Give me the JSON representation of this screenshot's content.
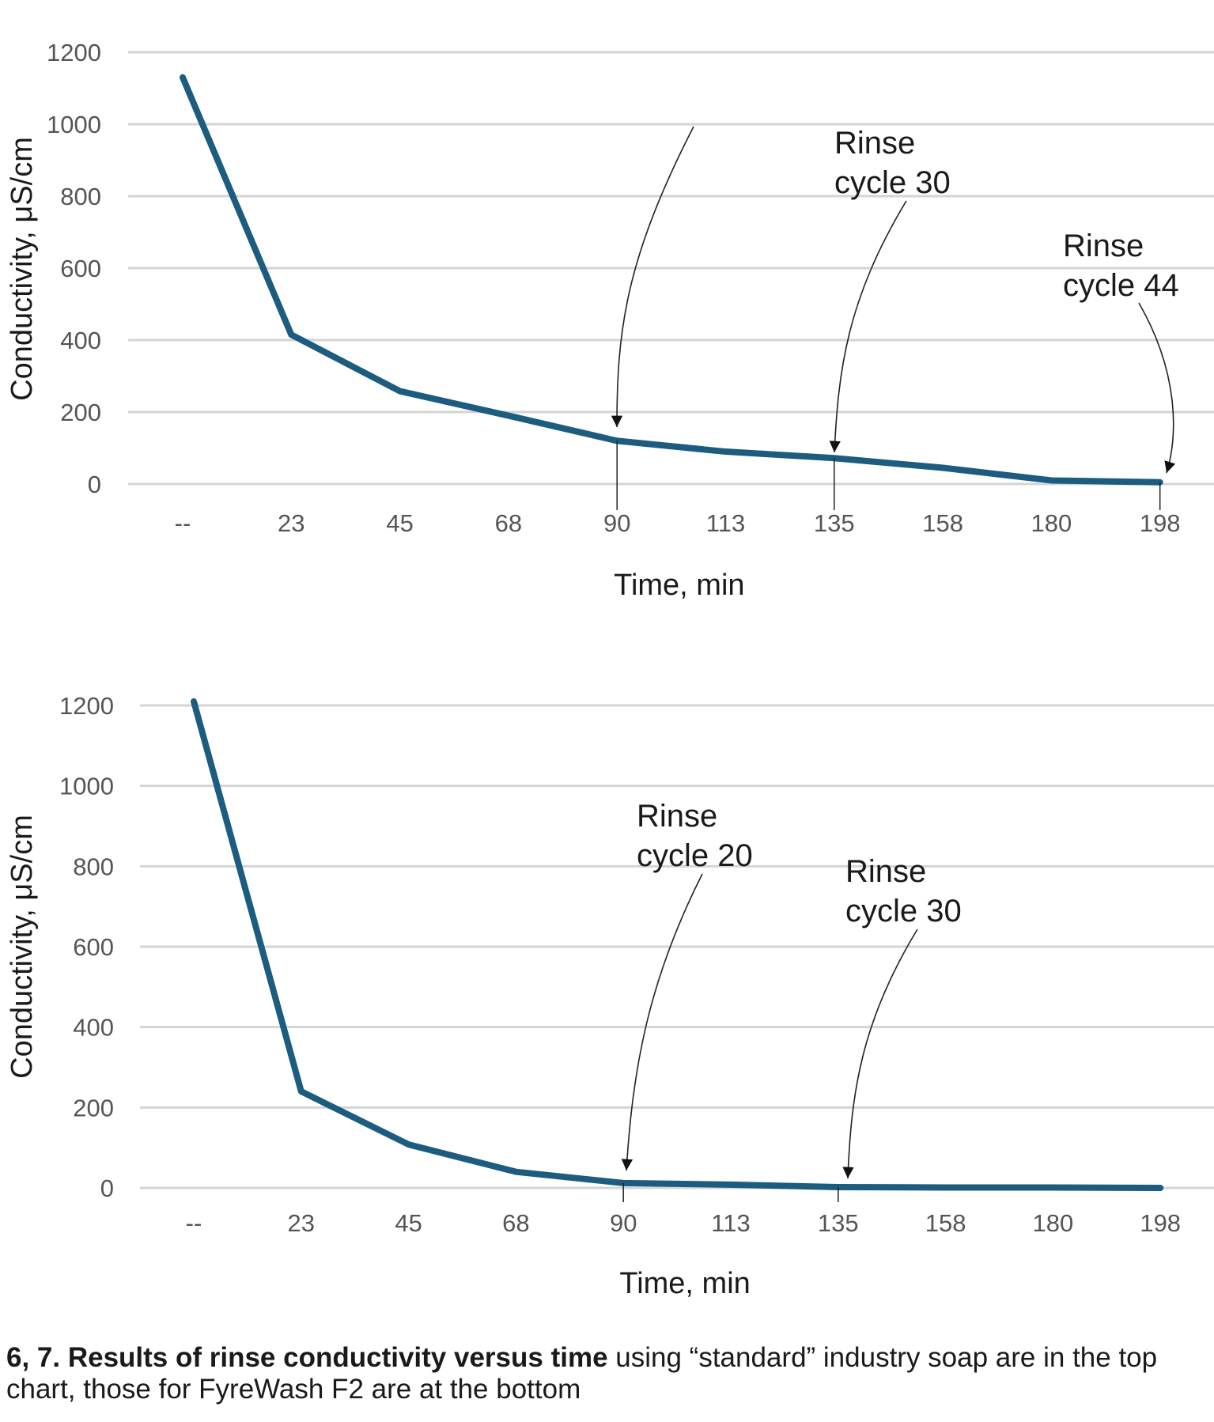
{
  "chart_data": [
    {
      "type": "line",
      "categories": [
        "--",
        "23",
        "45",
        "68",
        "90",
        "113",
        "135",
        "158",
        "180",
        "198"
      ],
      "series": [
        {
          "values": [
            1130,
            415,
            258,
            190,
            120,
            90,
            72,
            45,
            10,
            5
          ]
        }
      ],
      "xlabel": "Time, min",
      "ylabel": "Conductivity, μS/cm",
      "yticks": [
        0,
        200,
        400,
        600,
        800,
        1000,
        1200
      ],
      "ylim": [
        0,
        1200
      ],
      "grid": true,
      "line_color": "#1c5c7e",
      "annotations": [
        {
          "lines": [],
          "target_category": "90"
        },
        {
          "lines": [
            "Rinse",
            "cycle 30"
          ],
          "target_category": "135"
        },
        {
          "lines": [
            "Rinse",
            "cycle 44"
          ],
          "target_category": "198"
        }
      ]
    },
    {
      "type": "line",
      "categories": [
        "--",
        "23",
        "45",
        "68",
        "90",
        "113",
        "135",
        "158",
        "180",
        "198"
      ],
      "series": [
        {
          "values": [
            1210,
            240,
            108,
            40,
            12,
            8,
            2,
            1,
            1,
            0
          ]
        }
      ],
      "xlabel": "Time, min",
      "ylabel": "Conductivity, μS/cm",
      "yticks": [
        0,
        200,
        400,
        600,
        800,
        1000,
        1200
      ],
      "ylim": [
        0,
        1200
      ],
      "grid": true,
      "line_color": "#1c5c7e",
      "annotations": [
        {
          "lines": [
            "Rinse",
            "cycle 20"
          ],
          "target_category": "90"
        },
        {
          "lines": [
            "Rinse",
            "cycle 30"
          ],
          "target_category": "135"
        }
      ]
    }
  ],
  "caption": {
    "bold": "6, 7. Results of rinse conductivity versus time",
    "rest": " using “standard” industry soap are in the top chart, those for FyreWash F2 are at the bottom"
  }
}
